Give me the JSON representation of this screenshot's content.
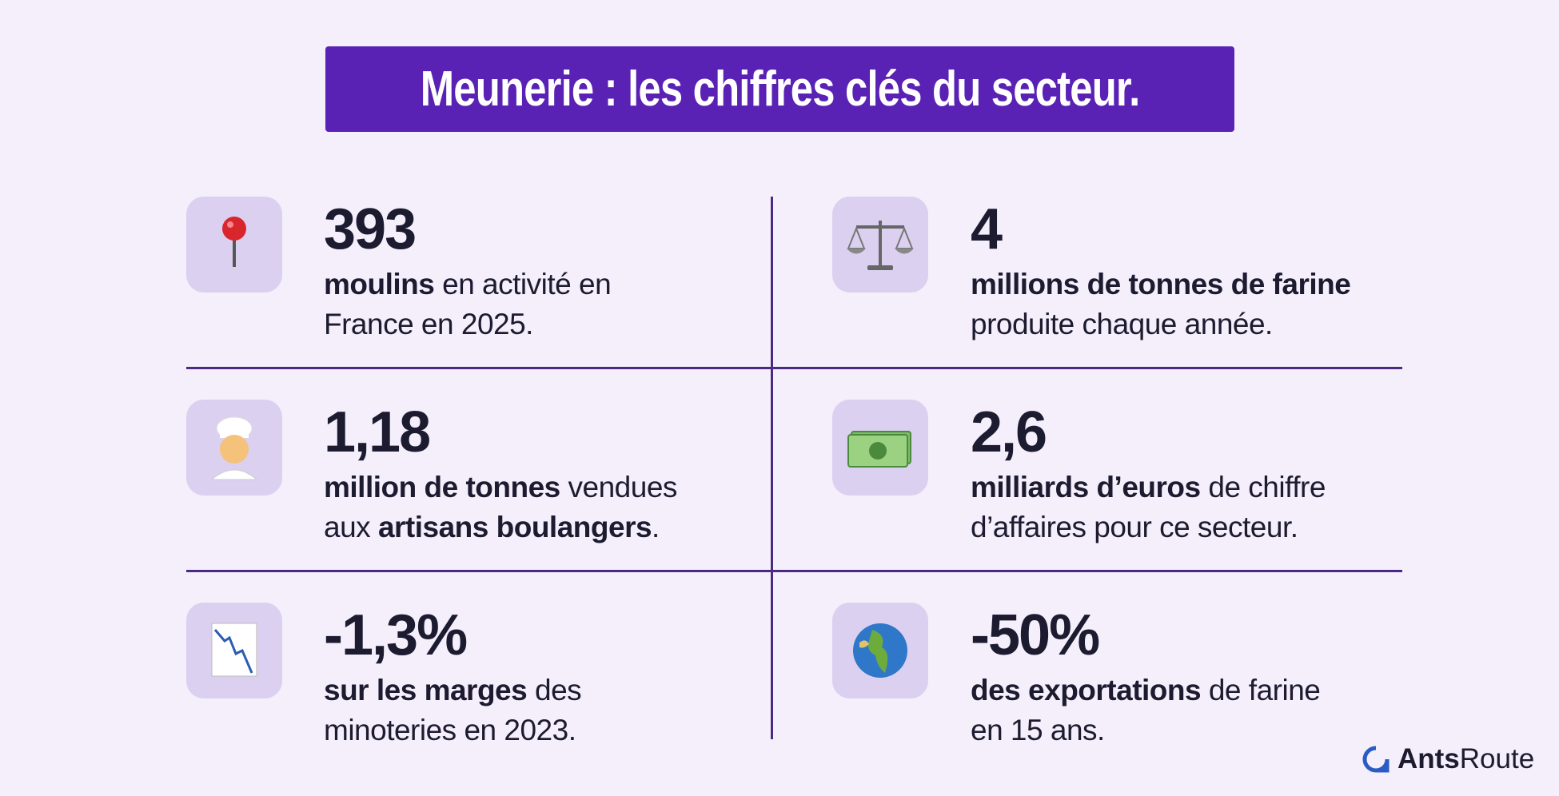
{
  "header": {
    "title": "Meunerie : les chiffres clés du secteur."
  },
  "stats": [
    {
      "value": "393",
      "lines": [
        [
          {
            "text": "moulins",
            "bold": true
          },
          {
            "text": " en activité en"
          }
        ],
        [
          {
            "text": "France en 2025."
          }
        ]
      ]
    },
    {
      "value": "4",
      "lines": [
        [
          {
            "text": "millions de tonnes de farine",
            "bold": true
          }
        ],
        [
          {
            "text": "produite chaque année."
          }
        ]
      ]
    },
    {
      "value": "1,18",
      "lines": [
        [
          {
            "text": "million de tonnes",
            "bold": true
          },
          {
            "text": " vendues"
          }
        ],
        [
          {
            "text": "aux "
          },
          {
            "text": "artisans boulangers",
            "bold": true
          },
          {
            "text": "."
          }
        ]
      ]
    },
    {
      "value": "2,6",
      "lines": [
        [
          {
            "text": "milliards d’euros",
            "bold": true
          },
          {
            "text": " de chiffre"
          }
        ],
        [
          {
            "text": "d’affaires pour ce secteur."
          }
        ]
      ]
    },
    {
      "value": "-1,3%",
      "lines": [
        [
          {
            "text": "sur les marges",
            "bold": true
          },
          {
            "text": " des"
          }
        ],
        [
          {
            "text": "minoteries en 2023."
          }
        ]
      ]
    },
    {
      "value": "-50%",
      "lines": [
        [
          {
            "text": "des exportations",
            "bold": true
          },
          {
            "text": " de farine"
          }
        ],
        [
          {
            "text": "en 15 ans."
          }
        ]
      ]
    }
  ],
  "brand": {
    "bold": "Ants",
    "regular": "Route"
  }
}
